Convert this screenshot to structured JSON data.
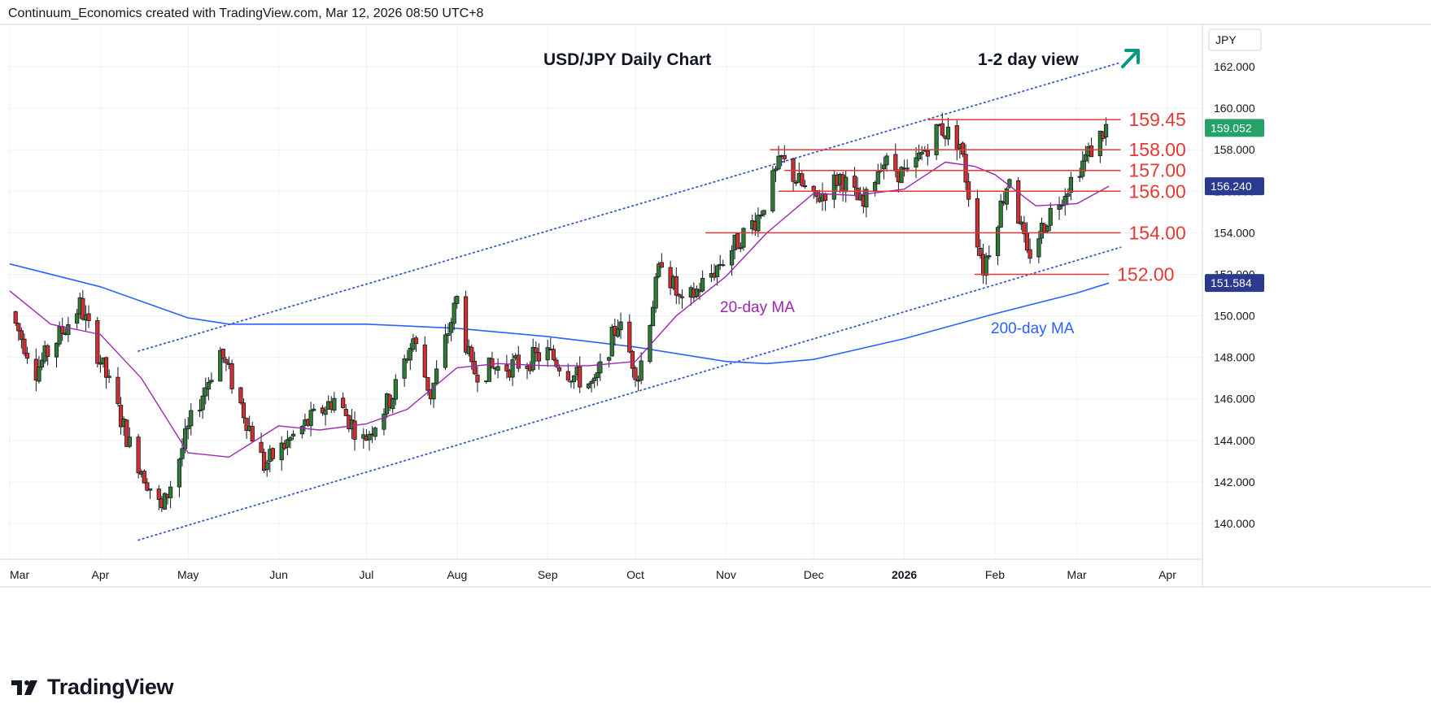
{
  "header": {
    "text": "Continuum_Economics created with TradingView.com, Mar 12, 2026 08:50 UTC+8"
  },
  "footer": {
    "logo_text": "TradingView"
  },
  "colors": {
    "bull": "#26a69a",
    "bear": "#ef5350",
    "bull_body": "#2e7d32",
    "bear_body": "#d32f2f",
    "ma20": "#9c27b0",
    "ma200": "#2962ff",
    "level": "#e53935",
    "channel": "#3a58c8",
    "arrow": "#089981",
    "grid": "#eef0f3",
    "last_price_bg": "#26a269",
    "ma20_tag_bg": "#1e3a8a",
    "ma200_tag_bg": "#1e3a8a"
  },
  "chart_data": {
    "type": "candlestick",
    "title": "USD/JPY Daily Chart",
    "subtitle": "1-2 day view",
    "view_arrow": "up-right-arrow",
    "currency_label": "JPY",
    "x_labels": [
      "Mar",
      "Apr",
      "May",
      "Jun",
      "Jul",
      "Aug",
      "Sep",
      "Oct",
      "Nov",
      "Dec",
      "2026",
      "Feb",
      "Mar",
      "Apr"
    ],
    "y_ticks": [
      "140.000",
      "142.000",
      "144.000",
      "146.000",
      "148.000",
      "150.000",
      "152.000",
      "154.000",
      "156.000",
      "158.000",
      "160.000",
      "162.000"
    ],
    "y_tick_values": [
      140,
      142,
      144,
      146,
      148,
      150,
      152,
      154,
      156,
      158,
      160,
      162
    ],
    "ylim": [
      138.3,
      164.5
    ],
    "price_tags": [
      {
        "label": "159.052",
        "value": 159.052,
        "kind": "last"
      },
      {
        "label": "156.240",
        "value": 156.24,
        "kind": "ma20"
      },
      {
        "label": "151.584",
        "value": 151.584,
        "kind": "ma200"
      }
    ],
    "levels": [
      {
        "label": "159.45",
        "value": 159.45
      },
      {
        "label": "158.00",
        "value": 158.0
      },
      {
        "label": "157.00",
        "value": 157.0
      },
      {
        "label": "156.00",
        "value": 156.0
      },
      {
        "label": "154.00",
        "value": 154.0
      },
      {
        "label": "152.00",
        "value": 152.0
      }
    ],
    "annotations": [
      {
        "text": "20-day MA",
        "series": "ma20"
      },
      {
        "text": "200-day MA",
        "series": "ma200"
      }
    ],
    "channel": {
      "upper": [
        {
          "date": "2025-04-14",
          "value": 148.3
        },
        {
          "date": "2026-03-16",
          "value": 162.2
        }
      ],
      "lower": [
        {
          "date": "2025-04-14",
          "value": 139.2
        },
        {
          "date": "2026-03-16",
          "value": 153.3
        }
      ]
    },
    "ma200": [
      {
        "date": "2025-03-01",
        "value": 152.5
      },
      {
        "date": "2025-04-01",
        "value": 151.4
      },
      {
        "date": "2025-05-01",
        "value": 149.9
      },
      {
        "date": "2025-05-15",
        "value": 149.6
      },
      {
        "date": "2025-06-01",
        "value": 149.6
      },
      {
        "date": "2025-07-01",
        "value": 149.6
      },
      {
        "date": "2025-08-01",
        "value": 149.4
      },
      {
        "date": "2025-09-01",
        "value": 149.0
      },
      {
        "date": "2025-10-01",
        "value": 148.5
      },
      {
        "date": "2025-11-01",
        "value": 147.8
      },
      {
        "date": "2025-11-15",
        "value": 147.7
      },
      {
        "date": "2025-12-01",
        "value": 147.9
      },
      {
        "date": "2026-01-01",
        "value": 148.9
      },
      {
        "date": "2026-02-01",
        "value": 150.1
      },
      {
        "date": "2026-03-01",
        "value": 151.1
      },
      {
        "date": "2026-03-12",
        "value": 151.58
      }
    ],
    "ma20": [
      {
        "date": "2025-03-01",
        "value": 151.2
      },
      {
        "date": "2025-03-15",
        "value": 149.6
      },
      {
        "date": "2025-04-01",
        "value": 149.1
      },
      {
        "date": "2025-04-15",
        "value": 147.0
      },
      {
        "date": "2025-05-01",
        "value": 143.4
      },
      {
        "date": "2025-05-15",
        "value": 143.2
      },
      {
        "date": "2025-06-01",
        "value": 144.7
      },
      {
        "date": "2025-06-15",
        "value": 144.5
      },
      {
        "date": "2025-07-01",
        "value": 144.8
      },
      {
        "date": "2025-07-15",
        "value": 145.5
      },
      {
        "date": "2025-08-01",
        "value": 147.5
      },
      {
        "date": "2025-08-15",
        "value": 147.7
      },
      {
        "date": "2025-09-01",
        "value": 147.6
      },
      {
        "date": "2025-09-15",
        "value": 147.6
      },
      {
        "date": "2025-10-01",
        "value": 147.8
      },
      {
        "date": "2025-10-15",
        "value": 150.0
      },
      {
        "date": "2025-11-01",
        "value": 151.9
      },
      {
        "date": "2025-11-15",
        "value": 154.0
      },
      {
        "date": "2025-12-01",
        "value": 155.9
      },
      {
        "date": "2025-12-15",
        "value": 155.8
      },
      {
        "date": "2026-01-01",
        "value": 156.1
      },
      {
        "date": "2026-01-15",
        "value": 157.4
      },
      {
        "date": "2026-01-25",
        "value": 157.2
      },
      {
        "date": "2026-02-01",
        "value": 156.8
      },
      {
        "date": "2026-02-15",
        "value": 155.3
      },
      {
        "date": "2026-03-01",
        "value": 155.4
      },
      {
        "date": "2026-03-12",
        "value": 156.24
      }
    ],
    "price_path": [
      {
        "date": "2025-03-01",
        "value": 150.2
      },
      {
        "date": "2025-03-10",
        "value": 147.4
      },
      {
        "date": "2025-03-25",
        "value": 150.5
      },
      {
        "date": "2025-04-03",
        "value": 147.1
      },
      {
        "date": "2025-04-11",
        "value": 143.8
      },
      {
        "date": "2025-04-22",
        "value": 140.6
      },
      {
        "date": "2025-05-02",
        "value": 144.9
      },
      {
        "date": "2025-05-12",
        "value": 148.3
      },
      {
        "date": "2025-05-27",
        "value": 142.8
      },
      {
        "date": "2025-06-09",
        "value": 144.6
      },
      {
        "date": "2025-06-20",
        "value": 146.0
      },
      {
        "date": "2025-06-30",
        "value": 144.0
      },
      {
        "date": "2025-07-10",
        "value": 146.2
      },
      {
        "date": "2025-07-17",
        "value": 148.9
      },
      {
        "date": "2025-07-23",
        "value": 146.2
      },
      {
        "date": "2025-08-01",
        "value": 150.8
      },
      {
        "date": "2025-08-06",
        "value": 147.3
      },
      {
        "date": "2025-08-20",
        "value": 147.6
      },
      {
        "date": "2025-09-01",
        "value": 148.2
      },
      {
        "date": "2025-09-10",
        "value": 147.1
      },
      {
        "date": "2025-09-17",
        "value": 146.6
      },
      {
        "date": "2025-09-25",
        "value": 149.7
      },
      {
        "date": "2025-10-02",
        "value": 147.1
      },
      {
        "date": "2025-10-10",
        "value": 152.8
      },
      {
        "date": "2025-10-17",
        "value": 150.4
      },
      {
        "date": "2025-10-28",
        "value": 152.2
      },
      {
        "date": "2025-11-12",
        "value": 154.8
      },
      {
        "date": "2025-11-20",
        "value": 157.5
      },
      {
        "date": "2025-12-01",
        "value": 155.5
      },
      {
        "date": "2025-12-10",
        "value": 156.7
      },
      {
        "date": "2025-12-18",
        "value": 155.2
      },
      {
        "date": "2025-12-24",
        "value": 157.5
      },
      {
        "date": "2026-01-02",
        "value": 156.7
      },
      {
        "date": "2026-01-13",
        "value": 159.1
      },
      {
        "date": "2026-01-20",
        "value": 158.3
      },
      {
        "date": "2026-01-23",
        "value": 155.9
      },
      {
        "date": "2026-01-28",
        "value": 152.3
      },
      {
        "date": "2026-02-06",
        "value": 156.8
      },
      {
        "date": "2026-02-12",
        "value": 152.8
      },
      {
        "date": "2026-02-20",
        "value": 155.0
      },
      {
        "date": "2026-03-02",
        "value": 157.2
      },
      {
        "date": "2026-03-11",
        "value": 159.05
      }
    ]
  }
}
